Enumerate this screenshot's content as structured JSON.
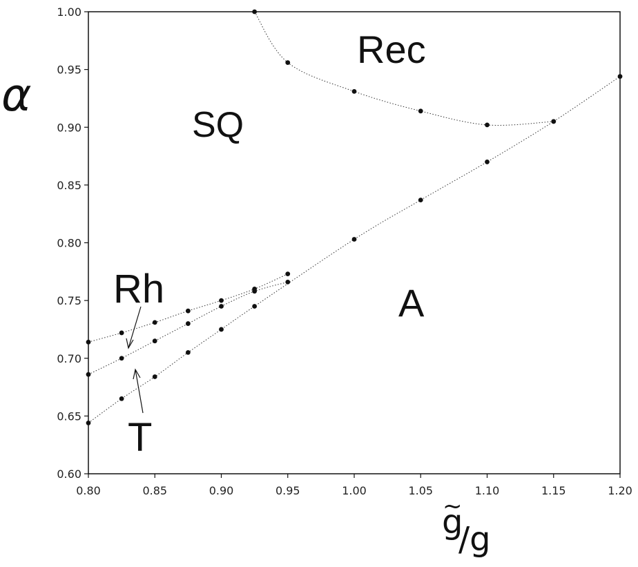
{
  "chart_data": {
    "type": "scatter",
    "xlabel_main": "g",
    "xlabel_tilde": "~",
    "xlabel_denominator": "/g",
    "ylabel": "α",
    "xlim": [
      0.8,
      1.2
    ],
    "ylim": [
      0.6,
      1.0
    ],
    "x_ticks": [
      "0.80",
      "0.85",
      "0.90",
      "0.95",
      "1.00",
      "1.05",
      "1.10",
      "1.15",
      "1.20"
    ],
    "y_ticks": [
      "0.60",
      "0.65",
      "0.70",
      "0.75",
      "0.80",
      "0.85",
      "0.90",
      "0.95",
      "1.00"
    ],
    "grid": false,
    "region_labels": {
      "rec": "Rec",
      "sq": "SQ",
      "a": "A",
      "rh": "Rh",
      "t": "T"
    },
    "series": [
      {
        "points": [
          {
            "x": 0.925,
            "y": 1.0
          },
          {
            "x": 0.95,
            "y": 0.956
          },
          {
            "x": 1.0,
            "y": 0.931
          },
          {
            "x": 1.05,
            "y": 0.914
          },
          {
            "x": 1.1,
            "y": 0.902
          },
          {
            "x": 1.15,
            "y": 0.905
          }
        ]
      },
      {
        "points": [
          {
            "x": 0.8,
            "y": 0.714
          },
          {
            "x": 0.825,
            "y": 0.722
          },
          {
            "x": 0.85,
            "y": 0.731
          },
          {
            "x": 0.875,
            "y": 0.741
          },
          {
            "x": 0.9,
            "y": 0.75
          },
          {
            "x": 0.925,
            "y": 0.76
          },
          {
            "x": 0.95,
            "y": 0.773
          }
        ]
      },
      {
        "points": [
          {
            "x": 0.8,
            "y": 0.686
          },
          {
            "x": 0.825,
            "y": 0.7
          },
          {
            "x": 0.85,
            "y": 0.715
          },
          {
            "x": 0.875,
            "y": 0.73
          },
          {
            "x": 0.9,
            "y": 0.745
          },
          {
            "x": 0.925,
            "y": 0.758
          },
          {
            "x": 0.95,
            "y": 0.766
          }
        ]
      },
      {
        "points": [
          {
            "x": 0.8,
            "y": 0.644
          },
          {
            "x": 0.825,
            "y": 0.665
          },
          {
            "x": 0.85,
            "y": 0.684
          },
          {
            "x": 0.875,
            "y": 0.705
          },
          {
            "x": 0.9,
            "y": 0.725
          },
          {
            "x": 0.925,
            "y": 0.745
          },
          {
            "x": 1.0,
            "y": 0.803
          },
          {
            "x": 1.05,
            "y": 0.837
          },
          {
            "x": 1.1,
            "y": 0.87
          },
          {
            "x": 1.15,
            "y": 0.905
          },
          {
            "x": 1.2,
            "y": 0.944
          }
        ]
      }
    ]
  }
}
